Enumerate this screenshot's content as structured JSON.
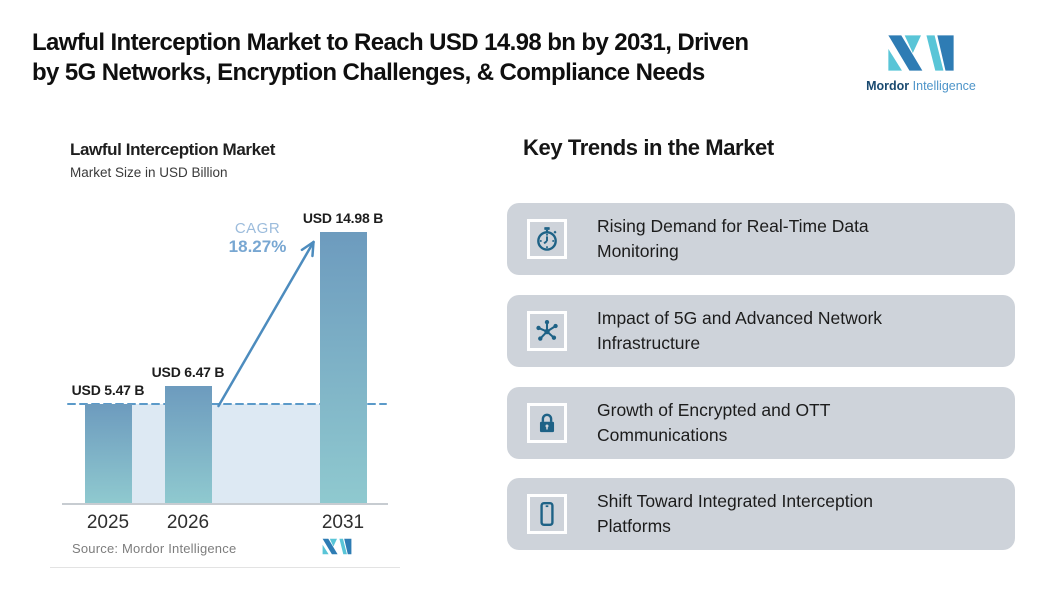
{
  "header": {
    "title_line1": "Lawful Interception Market to Reach USD 14.98 bn by 2031, Driven",
    "title_line2": "by 5G Networks, Encryption Challenges, & Compliance Needs"
  },
  "brand": {
    "name_bold": "Mordor",
    "name_light": "Intelligence",
    "logo_dark": "#2e7cb4",
    "logo_light": "#59c5d7"
  },
  "chart": {
    "title": "Lawful Interception Market",
    "subtitle": "Market Size in USD Billion",
    "cagr_label": "CAGR",
    "cagr_value": "18.27%",
    "source": "Source: Mordor Intelligence"
  },
  "chart_data": {
    "type": "bar",
    "title": "Lawful Interception Market",
    "subtitle": "Market Size in USD Billion",
    "unit": "USD Billion",
    "categories": [
      "2025",
      "2026",
      "2031"
    ],
    "values": [
      5.47,
      6.47,
      14.98
    ],
    "value_labels": [
      "USD 5.47 B",
      "USD 6.47 B",
      "USD 14.98 B"
    ],
    "cagr_percent": 18.27,
    "dashed_reference_value": 5.47,
    "ylim": [
      0,
      15.5
    ],
    "grid": false,
    "legend": false,
    "bar_color_top": "#6d9bbe",
    "bar_color_bottom": "#8fc9cf",
    "band_color": "#dde9f3",
    "dashed_color": "#5b9ac9",
    "arrow_color": "#4d8cbe",
    "axis_color": "#c7ccd1"
  },
  "trends": {
    "heading": "Key Trends in the Market",
    "icon_color": "#1e6286",
    "card_bg": "#ced3da",
    "items": [
      {
        "icon": "stopwatch-icon",
        "text": "Rising Demand for Real-Time Data Monitoring"
      },
      {
        "icon": "network-icon",
        "text": "Impact of 5G and Advanced Network Infrastructure"
      },
      {
        "icon": "lock-icon",
        "text": "Growth of Encrypted and OTT Communications"
      },
      {
        "icon": "smartphone-icon",
        "text": "Shift Toward Integrated Interception Platforms"
      }
    ]
  }
}
